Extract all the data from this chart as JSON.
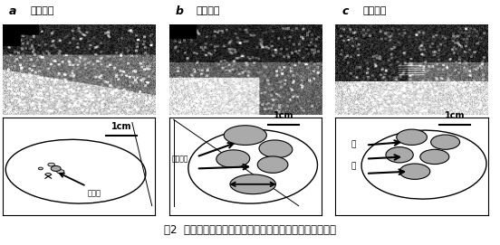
{
  "title": "図2  モバイル超音波画像診断装置による卵巣疾患の診断像",
  "panels": [
    {
      "label": "a",
      "title": "卵巣静止"
    },
    {
      "label": "b",
      "title": "卵巣嚢腫"
    },
    {
      "label": "c",
      "title": "鈍性発情"
    }
  ],
  "scale_label": "1cm",
  "bg_color": "#f0f0f0",
  "white": "#ffffff",
  "gray_fill": "#aaaaaa",
  "dark_gray": "#888888"
}
